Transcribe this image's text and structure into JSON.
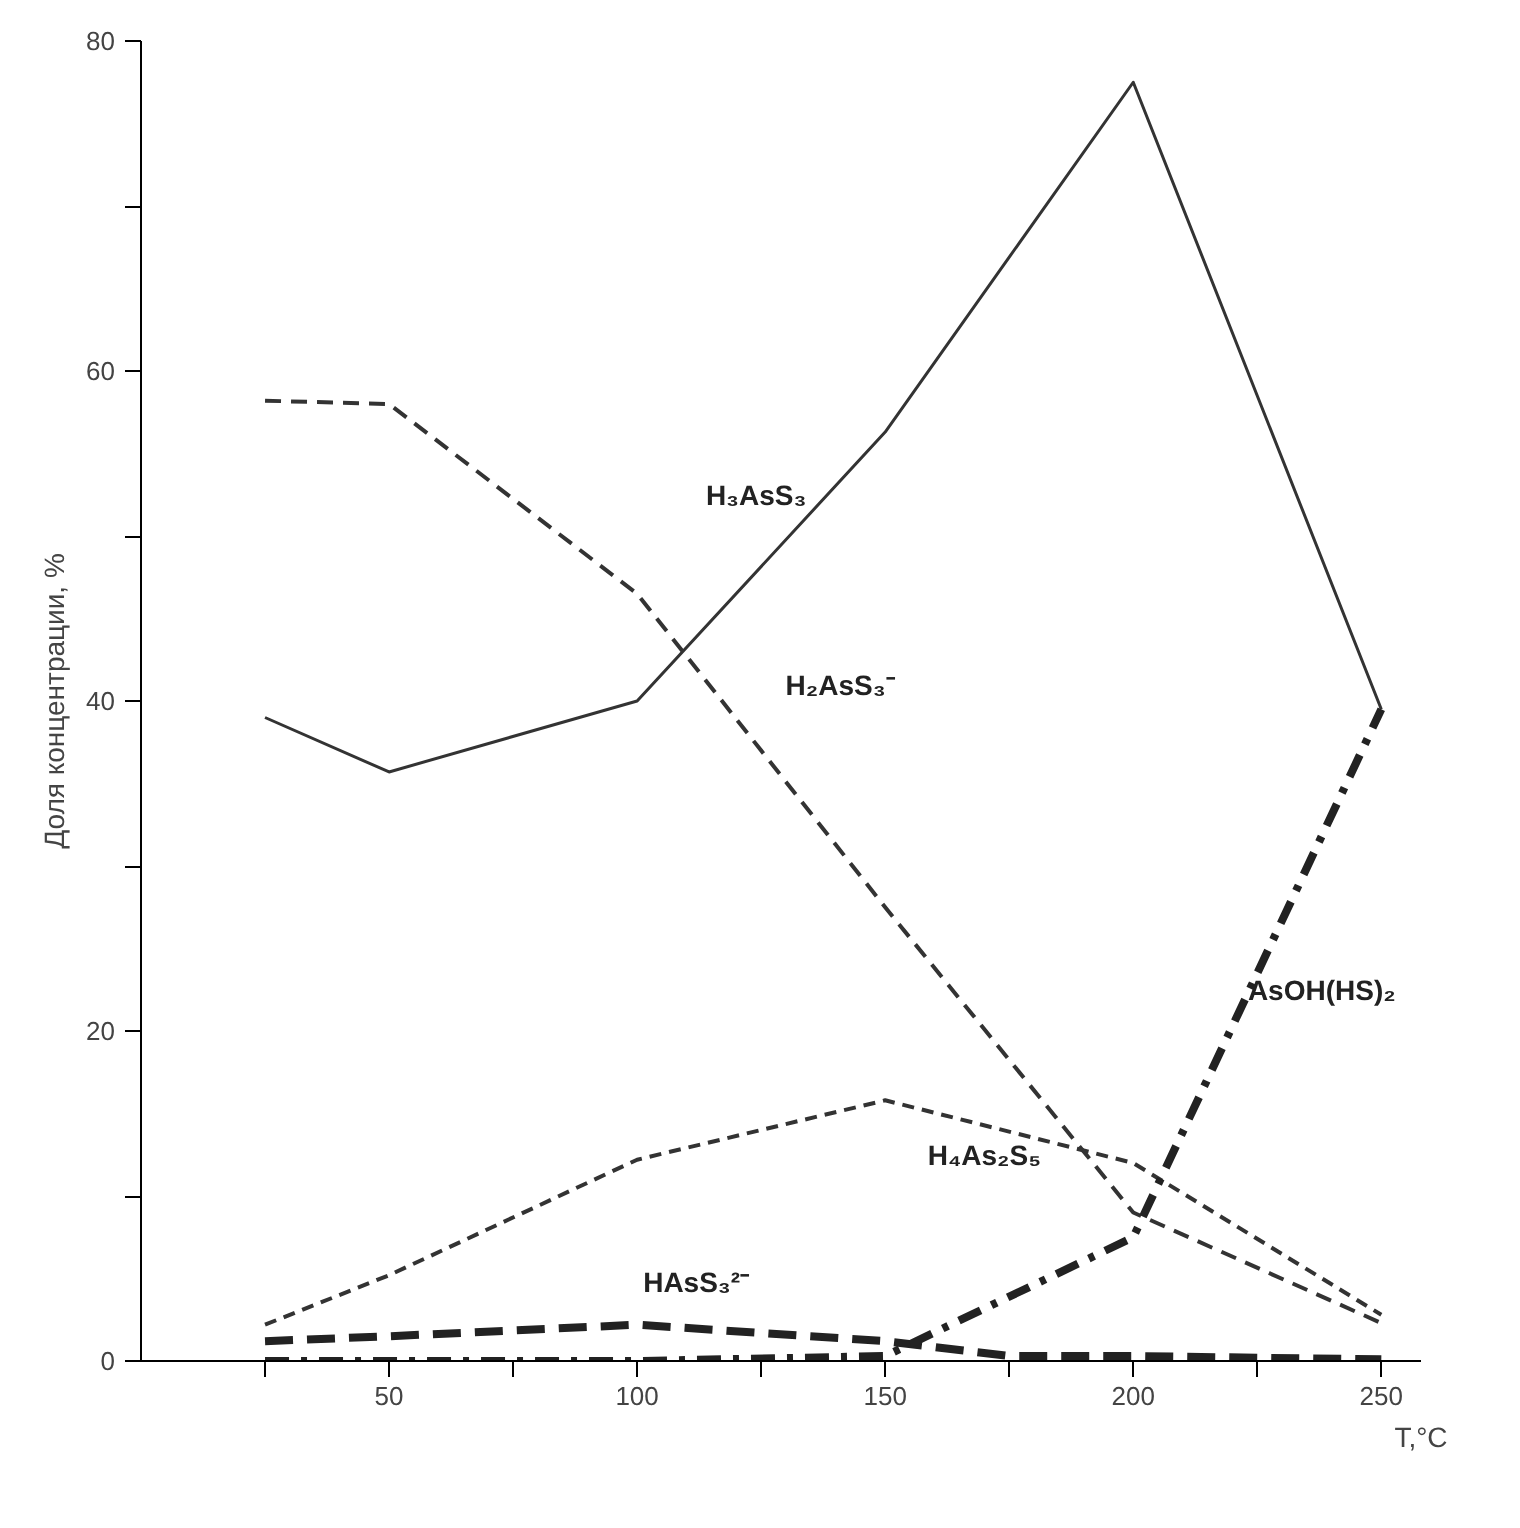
{
  "chart_data": {
    "type": "line",
    "xlabel": "T,°C",
    "ylabel": "Доля концентрации, %",
    "x": [
      25,
      50,
      100,
      150,
      200,
      250
    ],
    "series": [
      {
        "name": "H₃AsS₃",
        "color": "#333333",
        "line_style": "solid",
        "values": [
          39,
          35.7,
          40,
          56.3,
          77.5,
          39.5
        ]
      },
      {
        "name": "H₂AsS₃⁻",
        "color": "#333333",
        "line_style": "dashed",
        "values": [
          58.2,
          58,
          46.5,
          27.5,
          9,
          2.3
        ]
      },
      {
        "name": "H₄As₂S₅",
        "color": "#333333",
        "line_style": "shortdash",
        "values": [
          2.2,
          5.2,
          12.2,
          15.8,
          12,
          2.8
        ]
      },
      {
        "name": "HAsS₃²⁻",
        "color": "#222222",
        "line_style": "longdash",
        "x": [
          25,
          50,
          100,
          150,
          175,
          200,
          250
        ],
        "values": [
          1.2,
          1.5,
          2.2,
          1.2,
          0.3,
          0.3,
          0.1
        ]
      },
      {
        "name": "AsOH(HS)₂",
        "color": "#222222",
        "line_style": "dashdot",
        "x": [
          25,
          100,
          150,
          200,
          250
        ],
        "values": [
          0,
          0,
          0.3,
          7.5,
          39.5
        ]
      }
    ],
    "xlim": [
      0,
      258
    ],
    "ylim": [
      0,
      80
    ],
    "xticks": [
      {
        "value": 25,
        "label": null
      },
      50,
      {
        "value": 75,
        "label": null
      },
      100,
      {
        "value": 125,
        "label": null
      },
      150,
      {
        "value": 175,
        "label": null
      },
      200,
      {
        "value": 225,
        "label": null
      },
      250
    ],
    "yticks": [
      0,
      {
        "value": 10,
        "label": null
      },
      20,
      {
        "value": 30,
        "label": null
      },
      40,
      {
        "value": 50,
        "label": null
      },
      60,
      {
        "value": 70,
        "label": null
      },
      80
    ],
    "grid": false,
    "legend": false,
    "marker": "none"
  }
}
